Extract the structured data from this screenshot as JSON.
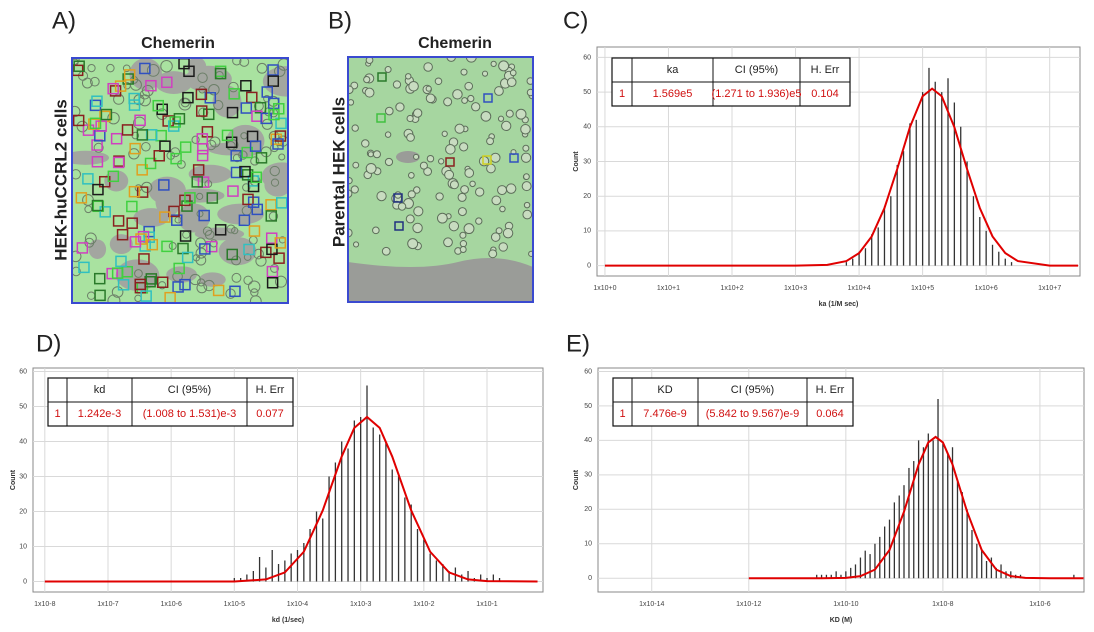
{
  "images": [
    {
      "label": "A)",
      "title": "Chemerin",
      "side_label": "HEK-huCCRL2 cells"
    },
    {
      "label": "B)",
      "title": "Chemerin",
      "side_label": "Parental HEK cells"
    }
  ],
  "chart_data": [
    {
      "type": "bar",
      "label": "C)",
      "x_label": "ka (1/M sec)",
      "y_label": "Count",
      "log_x": true,
      "grid": true,
      "xlim": [
        0.75,
        30000000
      ],
      "ylim": [
        -3,
        63
      ],
      "xticks": [
        {
          "value": 1,
          "label": "1x10+0"
        },
        {
          "value": 10,
          "label": "1x10+1"
        },
        {
          "value": 100,
          "label": "1x10+2"
        },
        {
          "value": 1000,
          "label": "1x10+3"
        },
        {
          "value": 10000,
          "label": "1x10+4"
        },
        {
          "value": 100000,
          "label": "1x10+5"
        },
        {
          "value": 1000000,
          "label": "1x10+6"
        },
        {
          "value": 10000000,
          "label": "1x10+7"
        }
      ],
      "yticks": [
        0,
        10,
        20,
        30,
        40,
        50,
        60
      ],
      "bars": {
        "color": "#333333",
        "x": [
          6310,
          7940,
          10000,
          12600,
          15800,
          20000,
          25100,
          31600,
          39800,
          50100,
          63100,
          79400,
          100000,
          126000,
          158000,
          200000,
          251000,
          316000,
          398000,
          501000,
          631000,
          794000,
          1000000,
          1260000,
          1580000,
          2000000,
          2510000
        ],
        "values": [
          1,
          2,
          4,
          5,
          9,
          11,
          17,
          20,
          29,
          33,
          41,
          42,
          50,
          57,
          53,
          50,
          54,
          47,
          40,
          30,
          20,
          14,
          10,
          6,
          4,
          2,
          1
        ]
      },
      "fit": {
        "color": "#e00000",
        "x": [
          1,
          1000,
          3160,
          6310,
          10000,
          15800,
          25100,
          39800,
          63100,
          100000,
          141000,
          200000,
          316000,
          501000,
          794000,
          1260000,
          2000000,
          3160000,
          10000000,
          28000000
        ],
        "values": [
          0,
          0,
          0.2,
          1.3,
          3.6,
          8.4,
          16.6,
          27.8,
          39.9,
          48.8,
          51,
          48.8,
          39.9,
          27.8,
          16.6,
          8.4,
          3.6,
          1.3,
          0,
          0
        ]
      },
      "table": {
        "columns": [
          "ka",
          "CI (95%)",
          "H. Err"
        ],
        "rows": [
          [
            "1",
            "1.569e5",
            "(1.271 to 1.936)e5",
            "0.104"
          ]
        ]
      }
    },
    {
      "type": "bar",
      "label": "D)",
      "x_label": "kd (1/sec)",
      "y_label": "Count",
      "log_x": true,
      "grid": true,
      "xlim": [
        6.5e-09,
        0.77
      ],
      "ylim": [
        -3,
        61
      ],
      "xticks": [
        {
          "value": 1e-08,
          "label": "1x10-8"
        },
        {
          "value": 1e-07,
          "label": "1x10-7"
        },
        {
          "value": 1e-06,
          "label": "1x10-6"
        },
        {
          "value": 1e-05,
          "label": "1x10-5"
        },
        {
          "value": 0.0001,
          "label": "1x10-4"
        },
        {
          "value": 0.001,
          "label": "1x10-3"
        },
        {
          "value": 0.01,
          "label": "1x10-2"
        },
        {
          "value": 0.1,
          "label": "1x10-1"
        }
      ],
      "yticks": [
        0,
        10,
        20,
        30,
        40,
        50,
        60
      ],
      "bars": {
        "color": "#333333",
        "x": [
          1e-05,
          1.26e-05,
          1.58e-05,
          2e-05,
          2.51e-05,
          3.16e-05,
          3.98e-05,
          5.01e-05,
          6.31e-05,
          7.94e-05,
          0.0001,
          0.000126,
          0.000158,
          0.0002,
          0.000251,
          0.000316,
          0.000398,
          0.000501,
          0.000631,
          0.000794,
          0.001,
          0.00126,
          0.00158,
          0.002,
          0.00251,
          0.00316,
          0.00398,
          0.00501,
          0.00631,
          0.00794,
          0.01,
          0.0126,
          0.0158,
          0.02,
          0.0251,
          0.0316,
          0.0398,
          0.0501,
          0.0631,
          0.0794,
          0.1,
          0.126,
          0.158
        ],
        "values": [
          1,
          1,
          2,
          3,
          7,
          4,
          9,
          5,
          6,
          8,
          9,
          11,
          15,
          20,
          18,
          30,
          34,
          40,
          38,
          46,
          47,
          56,
          44,
          42,
          40,
          32,
          30,
          24,
          22,
          15,
          12,
          8,
          6,
          5,
          3,
          4,
          2,
          3,
          1,
          2,
          1,
          2,
          1
        ]
      },
      "fit": {
        "color": "#e00000",
        "x": [
          1e-08,
          1e-05,
          3.16e-05,
          6.31e-05,
          0.000126,
          0.000251,
          0.000501,
          0.000794,
          0.00126,
          0.002,
          0.00316,
          0.00631,
          0.0126,
          0.0251,
          0.0501,
          0.1,
          0.631
        ],
        "values": [
          0,
          0,
          0.6,
          2.6,
          8.5,
          20.3,
          35.7,
          43.9,
          47,
          43.9,
          35.7,
          20.3,
          8.5,
          2.6,
          0.6,
          0.1,
          0
        ]
      },
      "table": {
        "columns": [
          "kd",
          "CI (95%)",
          "H. Err"
        ],
        "rows": [
          [
            "1",
            "1.242e-3",
            "(1.008 to 1.531)e-3",
            "0.077"
          ]
        ]
      }
    },
    {
      "type": "bar",
      "label": "E)",
      "x_label": "KD (M)",
      "y_label": "Count",
      "log_x": true,
      "grid": true,
      "xlim": [
        7.8e-16,
        8.1e-06
      ],
      "ylim": [
        -4,
        61
      ],
      "xticks": [
        {
          "value": 1e-14,
          "label": "1x10-14"
        },
        {
          "value": 1e-12,
          "label": "1x10-12"
        },
        {
          "value": 1e-10,
          "label": "1x10-10"
        },
        {
          "value": 1e-08,
          "label": "1x10-8"
        },
        {
          "value": 1e-06,
          "label": "1x10-6"
        }
      ],
      "yticks": [
        0,
        10,
        20,
        30,
        40,
        50,
        60
      ],
      "bars": {
        "color": "#333333",
        "x": [
          2.51e-11,
          3.16e-11,
          3.98e-11,
          5.01e-11,
          6.31e-11,
          7.94e-11,
          1e-10,
          1.26e-10,
          1.58e-10,
          2e-10,
          2.51e-10,
          3.16e-10,
          3.98e-10,
          5.01e-10,
          6.31e-10,
          7.94e-10,
          1e-09,
          1.26e-09,
          1.58e-09,
          2e-09,
          2.51e-09,
          3.16e-09,
          3.98e-09,
          5.01e-09,
          6.31e-09,
          7.94e-09,
          1e-08,
          1.26e-08,
          1.58e-08,
          2e-08,
          2.51e-08,
          3.16e-08,
          3.98e-08,
          5.01e-08,
          6.31e-08,
          7.94e-08,
          1e-07,
          1.26e-07,
          1.58e-07,
          2e-07,
          2.51e-07,
          3.16e-07,
          3.98e-07,
          5.01e-06
        ],
        "values": [
          1,
          1,
          1,
          1,
          2,
          1,
          2,
          3,
          4,
          6,
          8,
          7,
          10,
          12,
          15,
          17,
          22,
          24,
          27,
          32,
          34,
          40,
          38,
          42,
          40,
          52,
          39,
          36,
          38,
          28,
          25,
          20,
          14,
          10,
          8,
          5,
          6,
          3,
          4,
          2,
          2,
          1,
          1,
          1
        ]
      },
      "fit": {
        "color": "#e00000",
        "x": [
          1e-12,
          3.16e-11,
          1e-10,
          2e-10,
          3.98e-10,
          7.94e-10,
          1.58e-09,
          3.16e-09,
          5.01e-09,
          7.08e-09,
          1e-08,
          1.58e-08,
          3.16e-08,
          6.31e-08,
          1.26e-07,
          2.51e-07,
          5.01e-07,
          1.58e-06,
          7.94e-06
        ],
        "values": [
          0,
          0,
          0.1,
          0.6,
          2.5,
          8.2,
          19.3,
          33,
          39.4,
          41,
          39.4,
          33,
          19.3,
          8.2,
          2.5,
          0.6,
          0.1,
          0,
          0
        ]
      },
      "table": {
        "columns": [
          "KD",
          "CI (95%)",
          "H. Err"
        ],
        "rows": [
          [
            "1",
            "7.476e-9",
            "(5.842 to 9.567)e-9",
            "0.064"
          ]
        ]
      }
    }
  ]
}
